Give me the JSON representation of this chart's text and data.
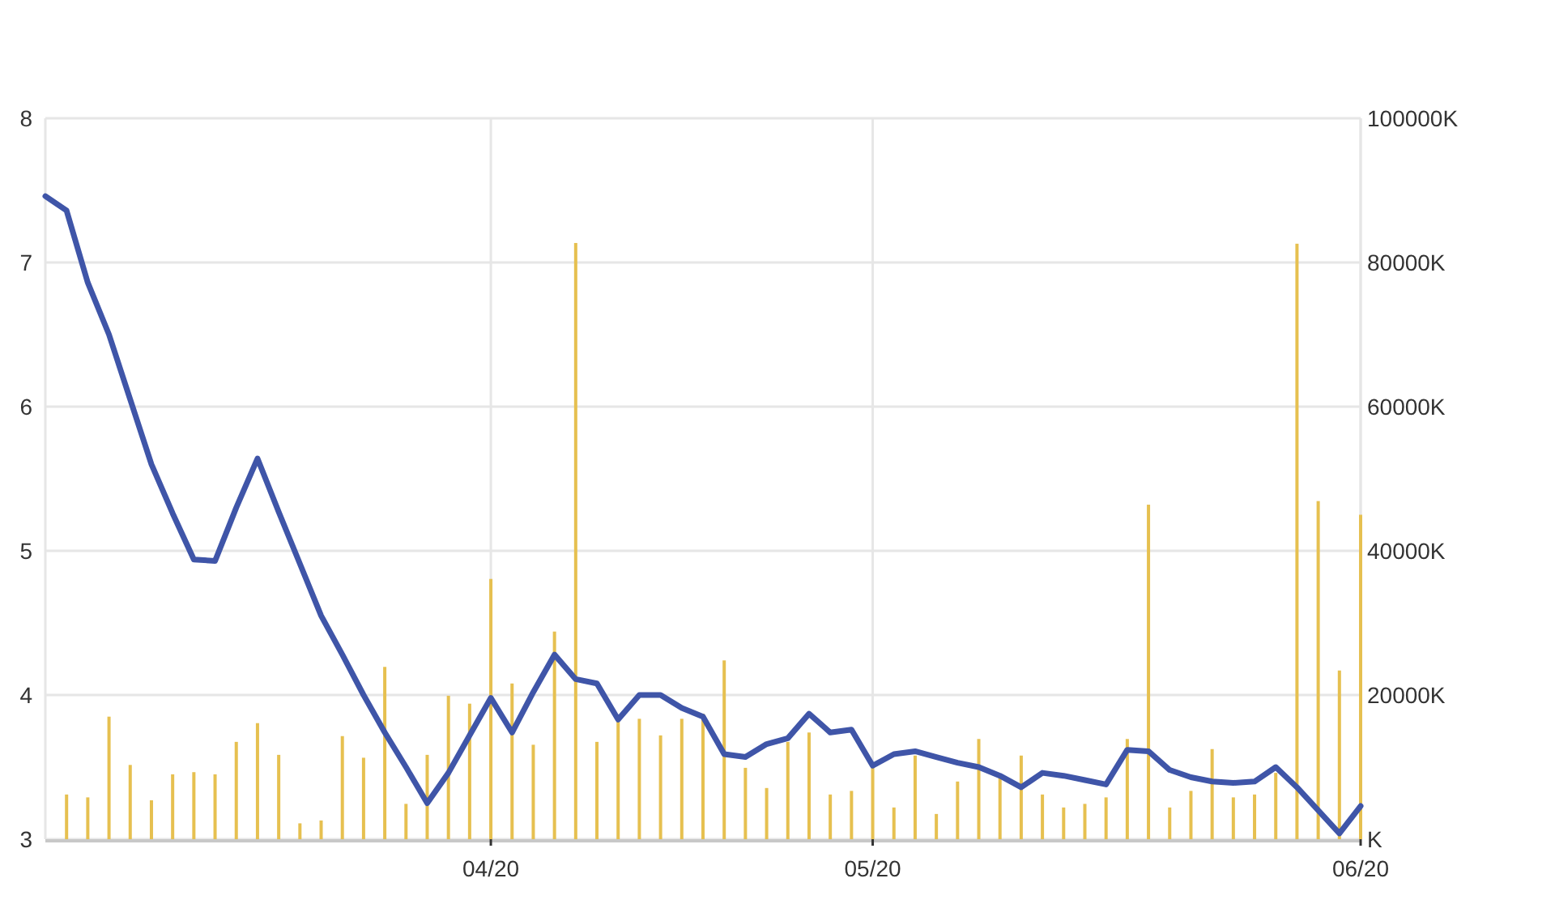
{
  "chart_data": {
    "type": "line",
    "categories": [
      null,
      null,
      null,
      null,
      null,
      null,
      null,
      null,
      null,
      null,
      null,
      null,
      null,
      null,
      null,
      null,
      null,
      null,
      null,
      null,
      null,
      "04/20",
      null,
      null,
      null,
      null,
      null,
      null,
      null,
      null,
      null,
      null,
      null,
      null,
      null,
      null,
      null,
      null,
      null,
      "05/20",
      null,
      null,
      null,
      null,
      null,
      null,
      null,
      null,
      null,
      null,
      null,
      null,
      null,
      null,
      null,
      null,
      null,
      null,
      null,
      null,
      null,
      null,
      "06/20"
    ],
    "series": [
      {
        "type": "bar",
        "axis": "y2",
        "color": "#e6c050",
        "values": [
          null,
          6200,
          5800,
          17000,
          10300,
          5400,
          9000,
          9300,
          9000,
          13500,
          16100,
          11700,
          2200,
          2600,
          14300,
          11300,
          23900,
          4900,
          11700,
          19900,
          18800,
          36100,
          21600,
          13100,
          28800,
          82700,
          13500,
          16300,
          16700,
          14400,
          16700,
          17400,
          24800,
          9900,
          7100,
          13500,
          14800,
          6200,
          6700,
          9900,
          4400,
          11600,
          3500,
          8000,
          13900,
          8600,
          11600,
          6200,
          4400,
          4900,
          5800,
          13900,
          46400,
          4400,
          6700,
          12500,
          5800,
          6200,
          9200,
          82600,
          46900,
          23400,
          45000
        ]
      },
      {
        "color": "#3f55a8",
        "values": [
          7.46,
          7.36,
          6.86,
          6.5,
          6.05,
          5.6,
          5.26,
          4.94,
          4.93,
          5.3,
          5.64,
          5.27,
          4.91,
          4.55,
          4.28,
          4.0,
          3.74,
          3.5,
          3.25,
          3.46,
          3.72,
          3.98,
          3.74,
          4.02,
          4.28,
          4.11,
          4.08,
          3.83,
          4.0,
          4.0,
          3.91,
          3.85,
          3.59,
          3.57,
          3.66,
          3.7,
          3.87,
          3.74,
          3.76,
          3.51,
          3.59,
          3.61,
          3.57,
          3.53,
          3.5,
          3.44,
          3.36,
          3.46,
          3.44,
          3.41,
          3.38,
          3.62,
          3.61,
          3.48,
          3.43,
          3.4,
          3.39,
          3.4,
          3.5,
          3.36,
          3.2,
          3.04,
          3.23
        ]
      }
    ],
    "ylim": [
      3,
      8
    ],
    "yticks": [
      3,
      4,
      5,
      6,
      7,
      8
    ],
    "y2lim": [
      0,
      100000
    ],
    "y2ticks": [
      {
        "value": 0,
        "label": "K"
      },
      {
        "value": 20000,
        "label": "20000K"
      },
      {
        "value": 40000,
        "label": "40000K"
      },
      {
        "value": 60000,
        "label": "60000K"
      },
      {
        "value": 80000,
        "label": "80000K"
      },
      {
        "value": 100000,
        "label": "100000K"
      }
    ],
    "grid": true,
    "marker": "none",
    "line_style": "solid"
  }
}
